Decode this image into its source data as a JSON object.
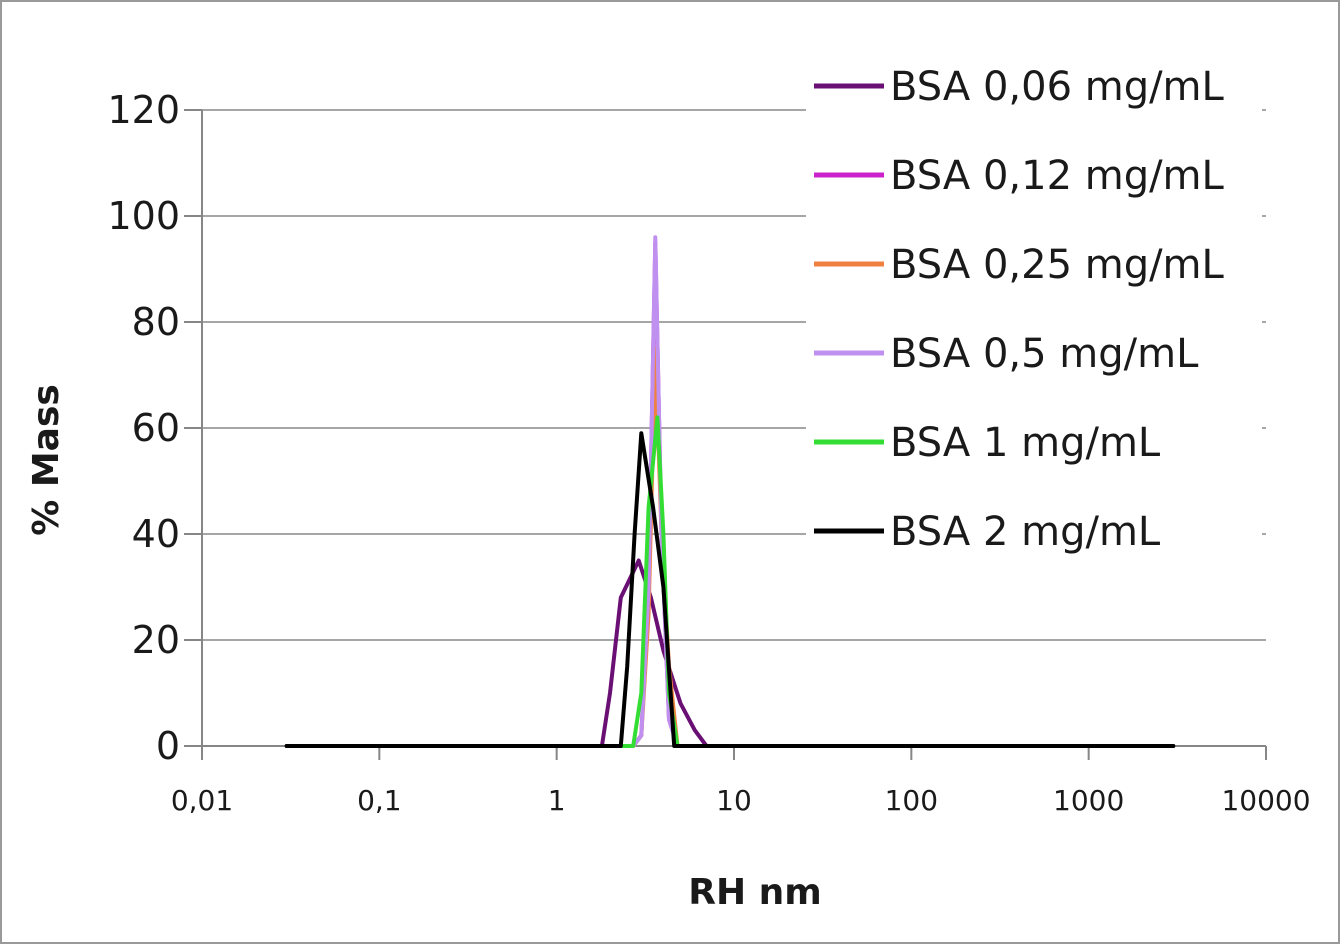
{
  "chart_data": {
    "type": "line",
    "xscale": "log",
    "xlabel": "RH nm",
    "ylabel": "% Mass",
    "xlim": [
      0.01,
      10000
    ],
    "ylim": [
      0,
      120
    ],
    "x_ticks": [
      0.01,
      0.1,
      1,
      10,
      100,
      1000,
      10000
    ],
    "x_tick_labels": [
      "0,01",
      "0,1",
      "1",
      "10",
      "100",
      "1000",
      "10000"
    ],
    "y_ticks": [
      0,
      20,
      40,
      60,
      80,
      100,
      120
    ],
    "y_tick_labels": [
      "0",
      "20",
      "40",
      "60",
      "80",
      "100",
      "120"
    ],
    "grid": "horizontal",
    "legend_position": "top-right",
    "series": [
      {
        "name": "BSA 0,06 mg/mL",
        "color": "#6a0f74",
        "x": [
          0.03,
          1.8,
          2.0,
          2.3,
          2.9,
          3.4,
          4.0,
          5.0,
          6.0,
          7.0,
          3000
        ],
        "y": [
          0,
          0,
          10,
          28,
          35,
          28,
          18,
          8,
          3,
          0,
          0
        ]
      },
      {
        "name": "BSA 0,12 mg/mL",
        "color": "#cc22cc",
        "x": [
          0.03,
          2.7,
          3.0,
          3.3,
          3.6,
          3.9,
          4.3,
          4.8,
          3000
        ],
        "y": [
          0,
          0,
          2,
          30,
          95,
          40,
          5,
          0,
          0
        ]
      },
      {
        "name": "BSA 0,25 mg/mL",
        "color": "#f08040",
        "x": [
          0.03,
          2.7,
          3.0,
          3.3,
          3.6,
          3.9,
          4.3,
          4.8,
          3000
        ],
        "y": [
          0,
          0,
          2,
          25,
          75,
          40,
          15,
          0,
          0
        ]
      },
      {
        "name": "BSA 0,5 mg/mL",
        "color": "#c090f0",
        "x": [
          0.03,
          2.7,
          3.0,
          3.3,
          3.6,
          3.9,
          4.3,
          4.8,
          3000
        ],
        "y": [
          0,
          0,
          2,
          30,
          96,
          40,
          5,
          0,
          0
        ]
      },
      {
        "name": "BSA 1 mg/mL",
        "color": "#33dd33",
        "x": [
          0.03,
          2.7,
          3.0,
          3.3,
          3.7,
          4.0,
          4.3,
          4.8,
          3000
        ],
        "y": [
          0,
          0,
          10,
          45,
          62,
          40,
          10,
          0,
          0
        ]
      },
      {
        "name": "BSA 2 mg/mL",
        "color": "#000000",
        "x": [
          0.03,
          2.3,
          2.5,
          2.75,
          3.0,
          3.5,
          4.0,
          4.6,
          3000
        ],
        "y": [
          0,
          0,
          15,
          40,
          59,
          45,
          30,
          0,
          0
        ]
      }
    ]
  }
}
